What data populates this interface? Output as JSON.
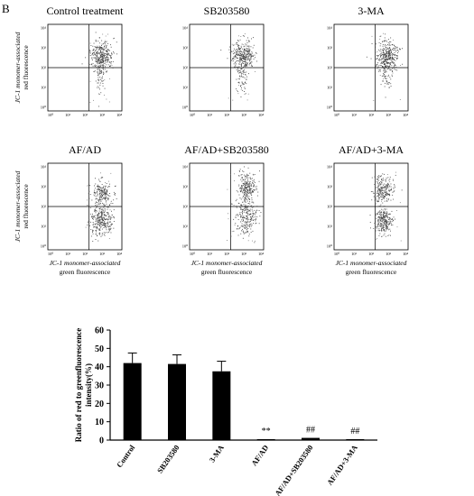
{
  "panel_letter": "B",
  "flow": {
    "panels": [
      {
        "title": "Control treatment",
        "pattern": "control"
      },
      {
        "title": "SB203580",
        "pattern": "control"
      },
      {
        "title": "3-MA",
        "pattern": "control"
      },
      {
        "title": "AF/AD",
        "pattern": "af"
      },
      {
        "title": "AF/AD+SB203580",
        "pattern": "afsb"
      },
      {
        "title": "AF/AD+3-MA",
        "pattern": "afma"
      }
    ],
    "ylabel_line1": "JC-1 monomer-associated",
    "ylabel_line2": "red fluorescence",
    "xlabel_line1": "JC-1 monomer-associated",
    "xlabel_line2": "green fluorescence",
    "ytick_labels": [
      "10⁴",
      "10³",
      "10²",
      "10¹",
      "10⁰"
    ],
    "xtick_labels": [
      "10⁰",
      "10¹",
      "10²",
      "10³",
      "10⁴"
    ]
  },
  "chart_data": {
    "type": "bar",
    "categories": [
      "Control",
      "SB203580",
      "3-MA",
      "AF/AD",
      "AF/AD+SB203580",
      "AF/AD+3-MA"
    ],
    "values": [
      42,
      41.5,
      37.5,
      0.5,
      1.2,
      0.5
    ],
    "errors": [
      5.5,
      5,
      5.5,
      0,
      0,
      0
    ],
    "annotations": [
      "",
      "",
      "",
      "**",
      "##",
      "##"
    ],
    "ylabel_line1": "Ratio of red to greenfluorescence",
    "ylabel_line2": "intensity(%)",
    "ylim": [
      0,
      60
    ],
    "yticks": [
      0,
      10,
      20,
      30,
      40,
      50,
      60
    ],
    "bar_color": "#000000"
  }
}
